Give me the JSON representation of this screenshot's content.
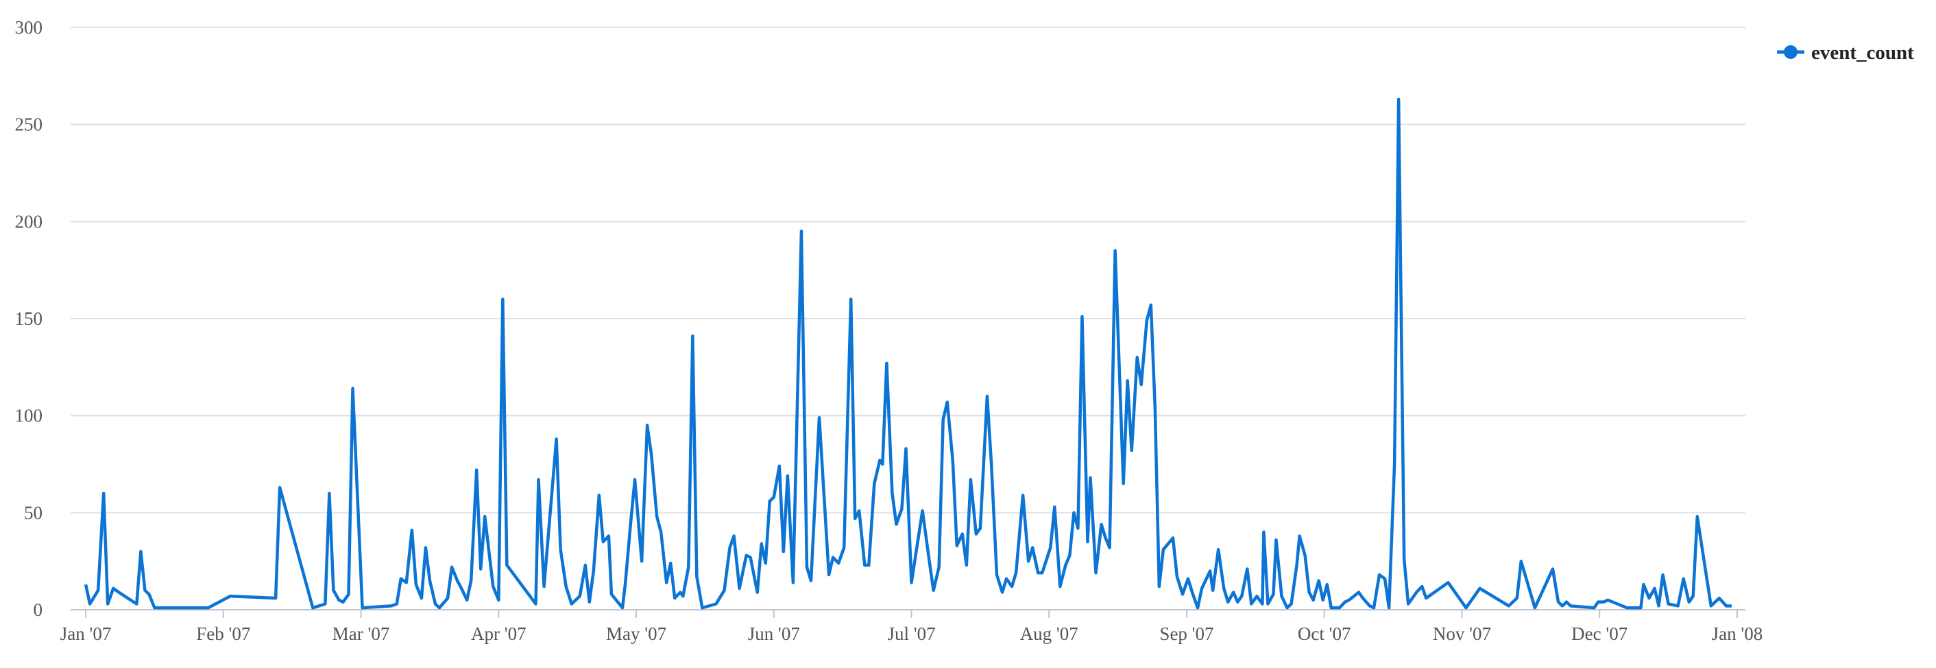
{
  "chart_data": {
    "type": "line",
    "x": [
      0,
      0.03,
      0.09,
      0.13,
      0.16,
      0.2,
      0.24,
      0.37,
      0.4,
      0.43,
      0.46,
      0.5,
      0.89,
      1.05,
      1.38,
      1.41,
      1.65,
      1.74,
      1.77,
      1.8,
      1.84,
      1.87,
      1.91,
      1.94,
      2.01,
      2.22,
      2.26,
      2.29,
      2.33,
      2.37,
      2.4,
      2.44,
      2.47,
      2.5,
      2.54,
      2.57,
      2.63,
      2.66,
      2.7,
      2.73,
      2.77,
      2.8,
      2.84,
      2.87,
      2.9,
      2.93,
      2.96,
      3.0,
      3.03,
      3.06,
      3.27,
      3.29,
      3.33,
      3.42,
      3.45,
      3.49,
      3.53,
      3.59,
      3.63,
      3.66,
      3.69,
      3.73,
      3.76,
      3.8,
      3.82,
      3.9,
      3.92,
      3.96,
      3.99,
      4.04,
      4.08,
      4.11,
      4.15,
      4.18,
      4.22,
      4.25,
      4.28,
      4.32,
      4.34,
      4.38,
      4.41,
      4.44,
      4.48,
      4.58,
      4.64,
      4.68,
      4.71,
      4.75,
      4.8,
      4.83,
      4.88,
      4.91,
      4.94,
      4.97,
      5.0,
      5.04,
      5.07,
      5.1,
      5.14,
      5.2,
      5.24,
      5.27,
      5.33,
      5.4,
      5.43,
      5.47,
      5.51,
      5.56,
      5.59,
      5.62,
      5.66,
      5.69,
      5.73,
      5.77,
      5.79,
      5.82,
      5.86,
      5.89,
      5.93,
      5.96,
      6.0,
      6.08,
      6.13,
      6.16,
      6.2,
      6.23,
      6.26,
      6.3,
      6.33,
      6.37,
      6.4,
      6.43,
      6.47,
      6.5,
      6.55,
      6.58,
      6.62,
      6.66,
      6.69,
      6.73,
      6.76,
      6.81,
      6.85,
      6.88,
      6.92,
      6.95,
      7.01,
      7.04,
      7.08,
      7.12,
      7.15,
      7.18,
      7.21,
      7.24,
      7.28,
      7.3,
      7.34,
      7.38,
      7.41,
      7.44,
      7.48,
      7.54,
      7.57,
      7.6,
      7.64,
      7.67,
      7.71,
      7.74,
      7.77,
      7.8,
      7.83,
      7.9,
      7.93,
      7.97,
      8.01,
      8.04,
      8.08,
      8.11,
      8.17,
      8.19,
      8.23,
      8.27,
      8.3,
      8.34,
      8.37,
      8.4,
      8.44,
      8.47,
      8.51,
      8.55,
      8.56,
      8.59,
      8.63,
      8.65,
      8.69,
      8.73,
      8.76,
      8.8,
      8.82,
      8.86,
      8.89,
      8.92,
      8.96,
      8.99,
      9.02,
      9.05,
      9.11,
      9.15,
      9.18,
      9.25,
      9.28,
      9.33,
      9.36,
      9.4,
      9.44,
      9.47,
      9.51,
      9.54,
      9.58,
      9.61,
      9.67,
      9.71,
      9.74,
      9.9,
      10.03,
      10.13,
      10.34,
      10.4,
      10.43,
      10.53,
      10.66,
      10.7,
      10.73,
      10.76,
      10.79,
      10.96,
      10.99,
      11.03,
      11.06,
      11.2,
      11.3,
      11.32,
      11.36,
      11.4,
      11.43,
      11.46,
      11.5,
      11.57,
      11.61,
      11.65,
      11.68,
      11.71,
      11.81,
      11.87,
      11.92,
      11.96
    ],
    "series": [
      {
        "name": "event_count",
        "color": "#0b74d4",
        "values": [
          13,
          3,
          10,
          60,
          3,
          11,
          9,
          3,
          30,
          10,
          8,
          1,
          1,
          7,
          6,
          63,
          1,
          3,
          60,
          10,
          5,
          4,
          8,
          114,
          1,
          2,
          3,
          16,
          14,
          41,
          13,
          6,
          32,
          15,
          3,
          1,
          6,
          22,
          15,
          11,
          5,
          15,
          72,
          21,
          48,
          30,
          12,
          5,
          160,
          23,
          3,
          67,
          12,
          88,
          31,
          12,
          3,
          7,
          23,
          4,
          20,
          59,
          35,
          38,
          8,
          1,
          13,
          45,
          67,
          25,
          95,
          80,
          48,
          40,
          14,
          24,
          6,
          9,
          7,
          22,
          141,
          17,
          1,
          3,
          10,
          32,
          38,
          11,
          28,
          27,
          9,
          34,
          24,
          56,
          58,
          74,
          30,
          69,
          14,
          195,
          22,
          15,
          99,
          18,
          27,
          24,
          32,
          160,
          47,
          51,
          23,
          23,
          65,
          77,
          75,
          127,
          60,
          44,
          52,
          83,
          14,
          51,
          25,
          10,
          22,
          98,
          107,
          77,
          33,
          39,
          23,
          67,
          39,
          42,
          110,
          76,
          18,
          9,
          16,
          12,
          19,
          59,
          25,
          32,
          19,
          19,
          32,
          53,
          12,
          23,
          28,
          50,
          42,
          151,
          35,
          68,
          19,
          44,
          37,
          32,
          185,
          65,
          118,
          82,
          130,
          116,
          149,
          157,
          104,
          12,
          31,
          37,
          17,
          8,
          16,
          9,
          1,
          11,
          20,
          10,
          31,
          11,
          4,
          9,
          4,
          7,
          21,
          3,
          7,
          3,
          40,
          3,
          8,
          36,
          7,
          1,
          3,
          23,
          38,
          28,
          9,
          5,
          15,
          5,
          13,
          1,
          1,
          4,
          5,
          9,
          6,
          2,
          1,
          18,
          16,
          1,
          75,
          263,
          26,
          3,
          9,
          12,
          6,
          14,
          1,
          11,
          2,
          6,
          25,
          1,
          21,
          4,
          2,
          4,
          2,
          1,
          4,
          4,
          5,
          1,
          1,
          13,
          6,
          11,
          2,
          18,
          3,
          2,
          16,
          4,
          7,
          48,
          2,
          6,
          2,
          2
        ]
      }
    ],
    "xlim": [
      -0.11,
      12.06
    ],
    "xticks": [
      {
        "value": 0,
        "label": "Jan '07"
      },
      {
        "value": 1,
        "label": "Feb '07"
      },
      {
        "value": 2,
        "label": "Mar '07"
      },
      {
        "value": 3,
        "label": "Apr '07"
      },
      {
        "value": 4,
        "label": "May '07"
      },
      {
        "value": 5,
        "label": "Jun '07"
      },
      {
        "value": 6,
        "label": "Jul '07"
      },
      {
        "value": 7,
        "label": "Aug '07"
      },
      {
        "value": 8,
        "label": "Sep '07"
      },
      {
        "value": 9,
        "label": "Oct '07"
      },
      {
        "value": 10,
        "label": "Nov '07"
      },
      {
        "value": 11,
        "label": "Dec '07"
      },
      {
        "value": 12,
        "label": "Jan '08"
      }
    ],
    "ylim": [
      0,
      300
    ],
    "yticks": [
      0,
      50,
      100,
      150,
      200,
      250,
      300
    ],
    "grid": true,
    "legend": "top-right"
  }
}
